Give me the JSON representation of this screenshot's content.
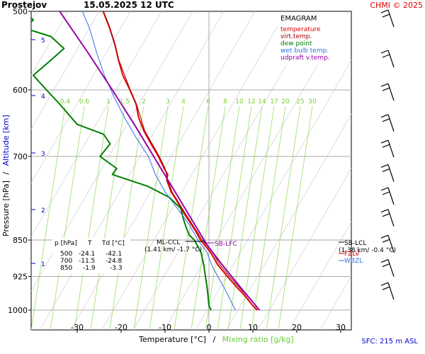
{
  "header": {
    "station": "Prostejov",
    "datetime": "15.05.2025 12 UTC",
    "credit": "CHMI © 2025"
  },
  "legend": {
    "title": "EMAGRAM",
    "items": [
      {
        "label": "temperature",
        "color": "#e00000"
      },
      {
        "label": "virt.temp.",
        "color": "#a00000"
      },
      {
        "label": "dew point",
        "color": "#008000"
      },
      {
        "label": "wet bulb temp.",
        "color": "#3070e0"
      },
      {
        "label": "udpraft v.temp.",
        "color": "#9900aa"
      }
    ]
  },
  "footer": {
    "sfc": "SFC: 215 m ASL"
  },
  "levels_table": {
    "headers": [
      "p [hPa]",
      "T",
      "Td [°C]"
    ],
    "rows": [
      [
        "500",
        "-24.1",
        "-42.1"
      ],
      [
        "700",
        "-11.5",
        "-24.8"
      ],
      [
        "850",
        "-1.9",
        "-3.3"
      ]
    ]
  },
  "annotations": {
    "ml_ccl_label": "ML-CCL",
    "ml_ccl_value": "(1.41 km/ -1.7 °C)",
    "sb_lfc": "SB-LFC",
    "sb_ccl_label": "SB-LCL",
    "sb_ccl_value": "(1.38 km/ -0.4 °C)",
    "fzlv": "FZLV",
    "wbzl": "WBZL"
  },
  "chart_data": {
    "type": "line",
    "xlabel_main": "Temperature [°C]",
    "xlabel_sep": "/",
    "xlabel_mix": "Mixing ratio [g/kg]",
    "ylabel_main": "Pressure [hPa]",
    "ylabel_sep": "/",
    "ylabel_alt": "Altitude [km]",
    "xlim": [
      -40,
      34
    ],
    "ylim_hpa": [
      1000,
      500
    ],
    "y_scale": "log",
    "x_ticks": [
      -30,
      -20,
      -10,
      0,
      10,
      20,
      30
    ],
    "y_ticks": [
      500,
      600,
      700,
      850,
      925,
      1000
    ],
    "altitude_ticks_km": [
      1,
      2,
      3,
      4,
      5
    ],
    "mixing_ratio_lines": [
      "0.4",
      "0.6",
      "1",
      "1.5",
      "2",
      "3",
      "4",
      "6",
      "8",
      "10",
      "12",
      "14",
      "17",
      "20",
      "25",
      "30"
    ],
    "series": [
      {
        "name": "temperature",
        "color": "#e00000",
        "points": [
          [
            1000,
            11
          ],
          [
            990,
            10
          ],
          [
            975,
            8.8
          ],
          [
            960,
            7.5
          ],
          [
            950,
            6.5
          ],
          [
            925,
            4.2
          ],
          [
            900,
            2
          ],
          [
            875,
            0.4
          ],
          [
            850,
            -1.9
          ],
          [
            830,
            -3.2
          ],
          [
            800,
            -5.6
          ],
          [
            780,
            -7
          ],
          [
            760,
            -8.6
          ],
          [
            740,
            -9.6
          ],
          [
            730,
            -9.4
          ],
          [
            720,
            -10.2
          ],
          [
            700,
            -11.5
          ],
          [
            680,
            -13.2
          ],
          [
            660,
            -14.8
          ],
          [
            640,
            -16
          ],
          [
            620,
            -16.6
          ],
          [
            600,
            -18
          ],
          [
            580,
            -19.6
          ],
          [
            560,
            -20.6
          ],
          [
            540,
            -21.4
          ],
          [
            520,
            -22.6
          ],
          [
            500,
            -24.1
          ]
        ]
      },
      {
        "name": "virt.temp.",
        "color": "#a00000",
        "points": [
          [
            1000,
            11.5
          ],
          [
            975,
            9.3
          ],
          [
            950,
            7
          ],
          [
            925,
            4.7
          ],
          [
            900,
            2.5
          ],
          [
            875,
            0.8
          ],
          [
            850,
            -1.5
          ],
          [
            800,
            -5.3
          ],
          [
            760,
            -8.4
          ],
          [
            740,
            -9.4
          ],
          [
            720,
            -10
          ],
          [
            700,
            -11.3
          ],
          [
            660,
            -14.6
          ],
          [
            620,
            -16.5
          ],
          [
            600,
            -17.9
          ],
          [
            560,
            -20.5
          ],
          [
            520,
            -22.5
          ],
          [
            500,
            -24
          ]
        ]
      },
      {
        "name": "dew point",
        "color": "#008000",
        "points": [
          [
            1000,
            0.5
          ],
          [
            990,
            0
          ],
          [
            970,
            -0.2
          ],
          [
            950,
            -0.4
          ],
          [
            925,
            -0.8
          ],
          [
            900,
            -1.2
          ],
          [
            875,
            -1.8
          ],
          [
            850,
            -3.3
          ],
          [
            840,
            -4.5
          ],
          [
            830,
            -5
          ],
          [
            810,
            -5.8
          ],
          [
            790,
            -6.4
          ],
          [
            770,
            -9
          ],
          [
            750,
            -14
          ],
          [
            740,
            -18
          ],
          [
            730,
            -22
          ],
          [
            720,
            -21
          ],
          [
            700,
            -24.8
          ],
          [
            680,
            -22.5
          ],
          [
            665,
            -24
          ],
          [
            650,
            -30
          ],
          [
            620,
            -34
          ],
          [
            600,
            -37
          ],
          [
            580,
            -40
          ],
          [
            560,
            -36
          ],
          [
            545,
            -33
          ],
          [
            530,
            -36
          ],
          [
            520,
            -42
          ],
          [
            510,
            -40
          ],
          [
            500,
            -42.1
          ]
        ]
      },
      {
        "name": "wet bulb temp.",
        "color": "#3070e0",
        "points": [
          [
            1000,
            6
          ],
          [
            975,
            4.8
          ],
          [
            950,
            3.5
          ],
          [
            925,
            2
          ],
          [
            900,
            0.6
          ],
          [
            875,
            -0.4
          ],
          [
            850,
            -2.5
          ],
          [
            820,
            -4.5
          ],
          [
            790,
            -7.2
          ],
          [
            760,
            -10
          ],
          [
            730,
            -12.2
          ],
          [
            700,
            -13.8
          ],
          [
            670,
            -16.6
          ],
          [
            640,
            -19.2
          ],
          [
            610,
            -21.6
          ],
          [
            580,
            -23.8
          ],
          [
            550,
            -25.6
          ],
          [
            520,
            -27.2
          ],
          [
            500,
            -28.8
          ]
        ]
      },
      {
        "name": "udpraft v.temp.",
        "color": "#9900aa",
        "points": [
          [
            1000,
            11.5
          ],
          [
            950,
            7.3
          ],
          [
            900,
            3
          ],
          [
            860,
            -0.4
          ],
          [
            850,
            -1.1
          ],
          [
            800,
            -4.7
          ],
          [
            750,
            -8.5
          ],
          [
            700,
            -12.6
          ],
          [
            650,
            -17
          ],
          [
            600,
            -22
          ],
          [
            550,
            -27.6
          ],
          [
            500,
            -34
          ]
        ]
      }
    ]
  },
  "wind_barbs": [
    {
      "p": 510
    },
    {
      "p": 560
    },
    {
      "p": 605
    },
    {
      "p": 650
    },
    {
      "p": 690
    },
    {
      "p": 730
    },
    {
      "p": 770
    },
    {
      "p": 810
    },
    {
      "p": 860
    },
    {
      "p": 910
    },
    {
      "p": 960
    }
  ]
}
